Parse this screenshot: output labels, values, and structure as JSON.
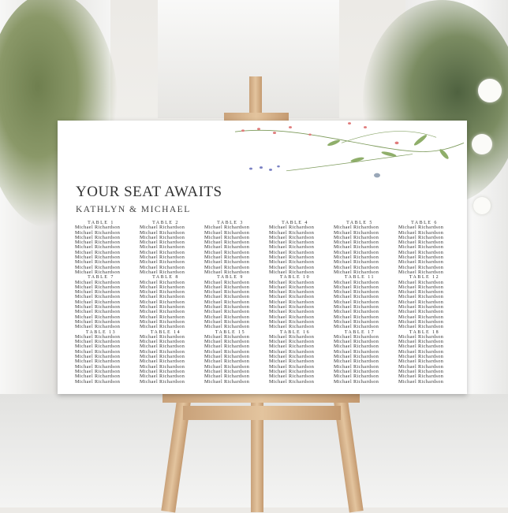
{
  "sign": {
    "title": "YOUR SEAT AWAITS",
    "couple": "KATHLYN & MICHAEL",
    "tables": [
      {
        "label": "TABLE 1",
        "guests": [
          "Michael Richardson",
          "Michael Richardson",
          "Michael Richardson",
          "Michael Richardson",
          "Michael Richardson",
          "Michael Richardson",
          "Michael Richardson",
          "Michael Richardson",
          "Michael Richardson",
          "Michael Richardson"
        ]
      },
      {
        "label": "TABLE 2",
        "guests": [
          "Michael Richardson",
          "Michael Richardson",
          "Michael Richardson",
          "Michael Richardson",
          "Michael Richardson",
          "Michael Richardson",
          "Michael Richardson",
          "Michael Richardson",
          "Michael Richardson",
          "Michael Richardson"
        ]
      },
      {
        "label": "TABLE 3",
        "guests": [
          "Michael Richardson",
          "Michael Richardson",
          "Michael Richardson",
          "Michael Richardson",
          "Michael Richardson",
          "Michael Richardson",
          "Michael Richardson",
          "Michael Richardson",
          "Michael Richardson",
          "Michael Richardson"
        ]
      },
      {
        "label": "TABLE 4",
        "guests": [
          "Michael Richardson",
          "Michael Richardson",
          "Michael Richardson",
          "Michael Richardson",
          "Michael Richardson",
          "Michael Richardson",
          "Michael Richardson",
          "Michael Richardson",
          "Michael Richardson",
          "Michael Richardson"
        ]
      },
      {
        "label": "TABLE 5",
        "guests": [
          "Michael Richardson",
          "Michael Richardson",
          "Michael Richardson",
          "Michael Richardson",
          "Michael Richardson",
          "Michael Richardson",
          "Michael Richardson",
          "Michael Richardson",
          "Michael Richardson",
          "Michael Richardson"
        ]
      },
      {
        "label": "TABLE 6",
        "guests": [
          "Michael Richardson",
          "Michael Richardson",
          "Michael Richardson",
          "Michael Richardson",
          "Michael Richardson",
          "Michael Richardson",
          "Michael Richardson",
          "Michael Richardson",
          "Michael Richardson",
          "Michael Richardson"
        ]
      },
      {
        "label": "TABLE 7",
        "guests": [
          "Michael Richardson",
          "Michael Richardson",
          "Michael Richardson",
          "Michael Richardson",
          "Michael Richardson",
          "Michael Richardson",
          "Michael Richardson",
          "Michael Richardson",
          "Michael Richardson",
          "Michael Richardson"
        ]
      },
      {
        "label": "TABLE 8",
        "guests": [
          "Michael Richardson",
          "Michael Richardson",
          "Michael Richardson",
          "Michael Richardson",
          "Michael Richardson",
          "Michael Richardson",
          "Michael Richardson",
          "Michael Richardson",
          "Michael Richardson",
          "Michael Richardson"
        ]
      },
      {
        "label": "TABLE 9",
        "guests": [
          "Michael Richardson",
          "Michael Richardson",
          "Michael Richardson",
          "Michael Richardson",
          "Michael Richardson",
          "Michael Richardson",
          "Michael Richardson",
          "Michael Richardson",
          "Michael Richardson",
          "Michael Richardson"
        ]
      },
      {
        "label": "TABLE 10",
        "guests": [
          "Michael Richardson",
          "Michael Richardson",
          "Michael Richardson",
          "Michael Richardson",
          "Michael Richardson",
          "Michael Richardson",
          "Michael Richardson",
          "Michael Richardson",
          "Michael Richardson",
          "Michael Richardson"
        ]
      },
      {
        "label": "TABLE 11",
        "guests": [
          "Michael Richardson",
          "Michael Richardson",
          "Michael Richardson",
          "Michael Richardson",
          "Michael Richardson",
          "Michael Richardson",
          "Michael Richardson",
          "Michael Richardson",
          "Michael Richardson",
          "Michael Richardson"
        ]
      },
      {
        "label": "TABLE 12",
        "guests": [
          "Michael Richardson",
          "Michael Richardson",
          "Michael Richardson",
          "Michael Richardson",
          "Michael Richardson",
          "Michael Richardson",
          "Michael Richardson",
          "Michael Richardson",
          "Michael Richardson",
          "Michael Richardson"
        ]
      },
      {
        "label": "TABLE 13",
        "guests": [
          "Michael Richardson",
          "Michael Richardson",
          "Michael Richardson",
          "Michael Richardson",
          "Michael Richardson",
          "Michael Richardson",
          "Michael Richardson",
          "Michael Richardson",
          "Michael Richardson",
          "Michael Richardson"
        ]
      },
      {
        "label": "TABLE 14",
        "guests": [
          "Michael Richardson",
          "Michael Richardson",
          "Michael Richardson",
          "Michael Richardson",
          "Michael Richardson",
          "Michael Richardson",
          "Michael Richardson",
          "Michael Richardson",
          "Michael Richardson",
          "Michael Richardson"
        ]
      },
      {
        "label": "TABLE 15",
        "guests": [
          "Michael Richardson",
          "Michael Richardson",
          "Michael Richardson",
          "Michael Richardson",
          "Michael Richardson",
          "Michael Richardson",
          "Michael Richardson",
          "Michael Richardson",
          "Michael Richardson",
          "Michael Richardson"
        ]
      },
      {
        "label": "TABLE 16",
        "guests": [
          "Michael Richardson",
          "Michael Richardson",
          "Michael Richardson",
          "Michael Richardson",
          "Michael Richardson",
          "Michael Richardson",
          "Michael Richardson",
          "Michael Richardson",
          "Michael Richardson",
          "Michael Richardson"
        ]
      },
      {
        "label": "TABLE 17",
        "guests": [
          "Michael Richardson",
          "Michael Richardson",
          "Michael Richardson",
          "Michael Richardson",
          "Michael Richardson",
          "Michael Richardson",
          "Michael Richardson",
          "Michael Richardson",
          "Michael Richardson",
          "Michael Richardson"
        ]
      },
      {
        "label": "TABLE 18",
        "guests": [
          "Michael Richardson",
          "Michael Richardson",
          "Michael Richardson",
          "Michael Richardson",
          "Michael Richardson",
          "Michael Richardson",
          "Michael Richardson",
          "Michael Richardson",
          "Michael Richardson",
          "Michael Richardson"
        ]
      }
    ]
  },
  "colors": {
    "text": "#333333",
    "board": "#ffffff",
    "wood": "#d9b68c",
    "greenery": "#6f7f4f",
    "flower_pink": "#e07b7b",
    "flower_blue": "#7b82c4"
  }
}
